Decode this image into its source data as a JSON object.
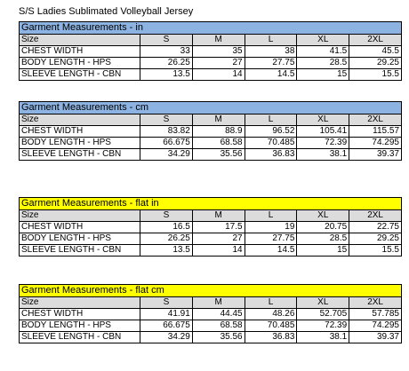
{
  "document": {
    "title": "S/S Ladies Sublimated Volleyball Jersey"
  },
  "colors": {
    "blue_header": "#8db3e2",
    "yellow_header": "#ffff00",
    "size_row": "#dcdcdc"
  },
  "tables": [
    {
      "title": "Garment Measurements - in",
      "header_color": "blue",
      "size_label": "Size",
      "sizes": [
        "S",
        "M",
        "L",
        "XL",
        "2XL"
      ],
      "rows": [
        {
          "label": "CHEST WIDTH",
          "values": [
            "33",
            "35",
            "38",
            "41.5",
            "45.5"
          ]
        },
        {
          "label": "BODY LENGTH - HPS",
          "values": [
            "26.25",
            "27",
            "27.75",
            "28.5",
            "29.25"
          ]
        },
        {
          "label": "SLEEVE LENGTH - CBN",
          "values": [
            "13.5",
            "14",
            "14.5",
            "15",
            "15.5"
          ]
        }
      ]
    },
    {
      "title": "Garment Measurements - cm",
      "header_color": "blue",
      "size_label": "Size",
      "sizes": [
        "S",
        "M",
        "L",
        "XL",
        "2XL"
      ],
      "rows": [
        {
          "label": "CHEST WIDTH",
          "values": [
            "83.82",
            "88.9",
            "96.52",
            "105.41",
            "115.57"
          ]
        },
        {
          "label": "BODY LENGTH - HPS",
          "values": [
            "66.675",
            "68.58",
            "70.485",
            "72.39",
            "74.295"
          ]
        },
        {
          "label": "SLEEVE LENGTH - CBN",
          "values": [
            "34.29",
            "35.56",
            "36.83",
            "38.1",
            "39.37"
          ]
        }
      ]
    },
    {
      "title": "Garment Measurements - flat in",
      "header_color": "yellow",
      "size_label": "Size",
      "sizes": [
        "S",
        "M",
        "L",
        "XL",
        "2XL"
      ],
      "rows": [
        {
          "label": "CHEST WIDTH",
          "values": [
            "16.5",
            "17.5",
            "19",
            "20.75",
            "22.75"
          ]
        },
        {
          "label": "BODY LENGTH - HPS",
          "values": [
            "26.25",
            "27",
            "27.75",
            "28.5",
            "29.25"
          ]
        },
        {
          "label": "SLEEVE LENGTH - CBN",
          "values": [
            "13.5",
            "14",
            "14.5",
            "15",
            "15.5"
          ]
        }
      ]
    },
    {
      "title": "Garment Measurements - flat cm",
      "header_color": "yellow",
      "size_label": "Size",
      "sizes": [
        "S",
        "M",
        "L",
        "XL",
        "2XL"
      ],
      "rows": [
        {
          "label": "CHEST WIDTH",
          "values": [
            "41.91",
            "44.45",
            "48.26",
            "52.705",
            "57.785"
          ]
        },
        {
          "label": "BODY LENGTH - HPS",
          "values": [
            "66.675",
            "68.58",
            "70.485",
            "72.39",
            "74.295"
          ]
        },
        {
          "label": "SLEEVE LENGTH - CBN",
          "values": [
            "34.29",
            "35.56",
            "36.83",
            "38.1",
            "39.37"
          ]
        }
      ]
    }
  ]
}
